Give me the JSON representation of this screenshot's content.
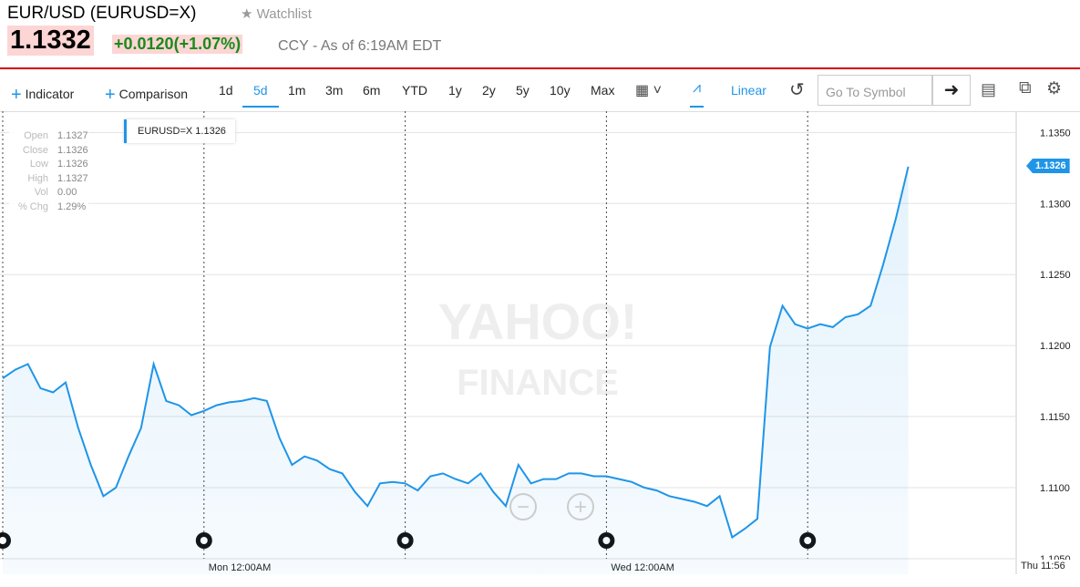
{
  "header": {
    "title": "EUR/USD (EURUSD=X)",
    "watchlist": "Watchlist",
    "price": "1.1332",
    "change": "+0.0120",
    "change_pct": "(+1.07%)",
    "note": "CCY - As of 6:19AM EDT"
  },
  "toolbar": {
    "indicator": "Indicator",
    "comparison": "Comparison",
    "ranges": [
      "1d",
      "5d",
      "1m",
      "3m",
      "6m",
      "YTD",
      "1y",
      "2y",
      "5y",
      "10y",
      "Max"
    ],
    "active_range": 1,
    "scale": "Linear",
    "search_placeholder": "Go To Symbol"
  },
  "info_panel": {
    "rows": [
      [
        "Open",
        "1.1327"
      ],
      [
        "Close",
        "1.1326"
      ],
      [
        "Low",
        "1.1326"
      ],
      [
        "High",
        "1.1327"
      ],
      [
        "Vol",
        "0.00"
      ],
      [
        "% Chg",
        "1.29%"
      ]
    ]
  },
  "watermark": {
    "line1": "YAHOO!",
    "line2": "FINANCE"
  },
  "legend_value": "1.1326",
  "current_time_label": "Thu 11:56",
  "chart_data": {
    "type": "line",
    "categories": [
      null,
      null,
      null,
      null,
      null,
      null,
      null,
      null,
      null,
      null,
      null,
      null,
      null,
      null,
      null,
      null,
      "Mon 12:00AM",
      null,
      null,
      null,
      null,
      null,
      null,
      null,
      null,
      null,
      null,
      null,
      null,
      null,
      null,
      null,
      null,
      null,
      null,
      null,
      null,
      null,
      null,
      null,
      null,
      null,
      null,
      null,
      null,
      null,
      null,
      null,
      "Wed 12:00AM",
      null,
      null,
      null,
      null,
      null,
      null,
      null,
      null,
      null,
      null,
      null,
      null,
      null,
      null,
      null,
      null,
      null,
      null,
      null,
      null,
      null,
      null,
      null,
      null
    ],
    "series": [
      {
        "name": "EURUSD=X",
        "color": "#1f95e8",
        "values": [
          1.1177,
          1.1183,
          1.1187,
          1.117,
          1.1167,
          1.1174,
          1.1142,
          1.1116,
          1.1094,
          1.11,
          1.1122,
          1.1142,
          1.1187,
          1.1161,
          1.1158,
          1.1151,
          1.1154,
          1.1158,
          1.116,
          1.1161,
          1.1163,
          1.1161,
          1.1135,
          1.1116,
          1.1122,
          1.1119,
          1.1113,
          1.111,
          1.1097,
          1.1087,
          1.1103,
          1.1104,
          1.1103,
          1.1098,
          1.1108,
          1.111,
          1.1106,
          1.1103,
          1.111,
          1.1097,
          1.1087,
          1.1116,
          1.1103,
          1.1106,
          1.1106,
          1.111,
          1.111,
          1.1108,
          1.1108,
          1.1106,
          1.1104,
          1.11,
          1.1098,
          1.1094,
          1.1092,
          1.109,
          1.1087,
          1.1094,
          1.1065,
          1.1071,
          1.1078,
          1.1199,
          1.1228,
          1.1215,
          1.1212,
          1.1215,
          1.1213,
          1.122,
          1.1222,
          1.1228,
          1.1257,
          1.1289,
          1.1326
        ]
      }
    ],
    "ylim": [
      1.1039,
      1.1365
    ],
    "yticks": [
      {
        "value": 1.105,
        "label": "1.1050"
      },
      {
        "value": 1.11,
        "label": "1.1100"
      },
      {
        "value": 1.115,
        "label": "1.1150"
      },
      {
        "value": 1.12,
        "label": "1.1200"
      },
      {
        "value": 1.125,
        "label": "1.1250"
      },
      {
        "value": 1.13,
        "label": "1.1300"
      },
      {
        "value": 1.135,
        "label": "1.1350"
      }
    ],
    "grid": true
  }
}
